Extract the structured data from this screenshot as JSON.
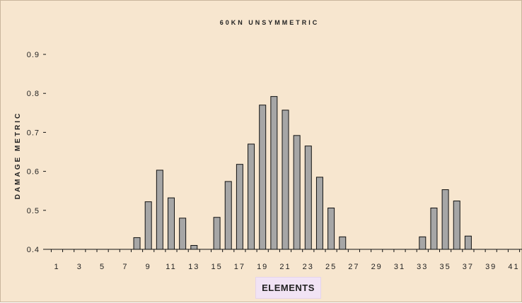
{
  "chart_data": {
    "type": "bar",
    "title": "60KN UNSYMMETRIC",
    "xlabel": "ELEMENTS",
    "ylabel": "DAMAGE METRIC",
    "ylim": [
      0.4,
      0.9
    ],
    "yticks": [
      "0.4",
      "0.5",
      "0.6",
      "0.7",
      "0.8",
      "0.9"
    ],
    "xticks": [
      "1",
      "3",
      "5",
      "7",
      "9",
      "11",
      "13",
      "15",
      "17",
      "19",
      "21",
      "23",
      "25",
      "27",
      "29",
      "31",
      "33",
      "35",
      "37",
      "39",
      "41"
    ],
    "grid": false,
    "legend": "none",
    "colors": {
      "bar": "#a6a6a6",
      "bar_edge": "#111111",
      "plot_bg": "#f7e6cf",
      "axis_label_bg": "#f1e3f4"
    },
    "x": [
      1,
      2,
      3,
      4,
      5,
      6,
      7,
      8,
      9,
      10,
      11,
      12,
      13,
      14,
      15,
      16,
      17,
      18,
      19,
      20,
      21,
      22,
      23,
      24,
      25,
      26,
      27,
      28,
      29,
      30,
      31,
      32,
      33,
      34,
      35,
      36,
      37,
      38,
      39,
      40,
      41
    ],
    "values": [
      0.4,
      0.4,
      0.4,
      0.4,
      0.4,
      0.4,
      0.4,
      0.43,
      0.522,
      0.603,
      0.532,
      0.48,
      0.41,
      0.4,
      0.482,
      0.574,
      0.618,
      0.67,
      0.77,
      0.792,
      0.757,
      0.692,
      0.665,
      0.585,
      0.506,
      0.432,
      0.4,
      0.4,
      0.4,
      0.4,
      0.4,
      0.4,
      0.432,
      0.506,
      0.553,
      0.524,
      0.434,
      0.4,
      0.4,
      0.4,
      0.4
    ]
  }
}
